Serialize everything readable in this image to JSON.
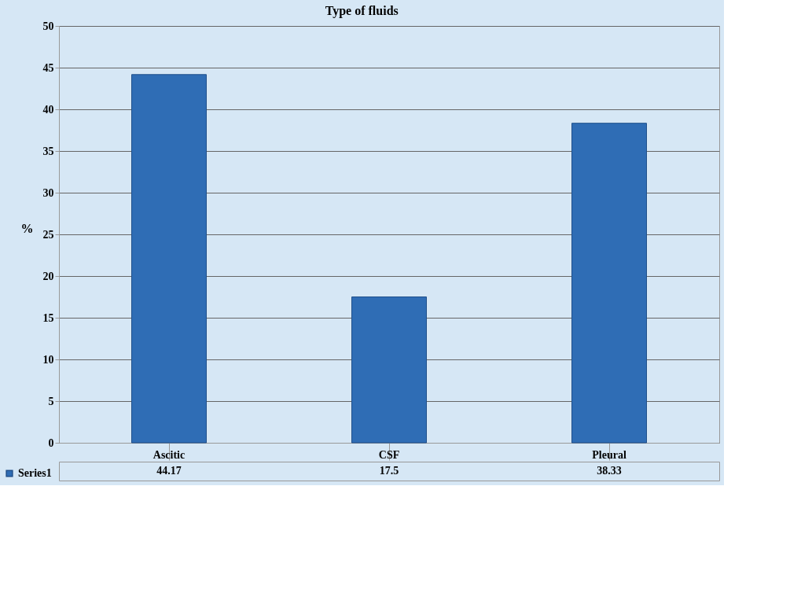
{
  "chart_data": {
    "type": "bar",
    "title": "Type of fluids",
    "ylabel": "%",
    "categories": [
      "Ascitic",
      "CSF",
      "Pleural"
    ],
    "series": [
      {
        "name": "Series1",
        "color": "#2f6db5",
        "values": [
          44.17,
          17.5,
          38.33
        ]
      }
    ],
    "ylim": [
      0,
      50
    ],
    "yticks": [
      0,
      5,
      10,
      15,
      20,
      25,
      30,
      35,
      40,
      45,
      50
    ],
    "grid": "y",
    "data_labels": true,
    "legend": "bottom left"
  }
}
